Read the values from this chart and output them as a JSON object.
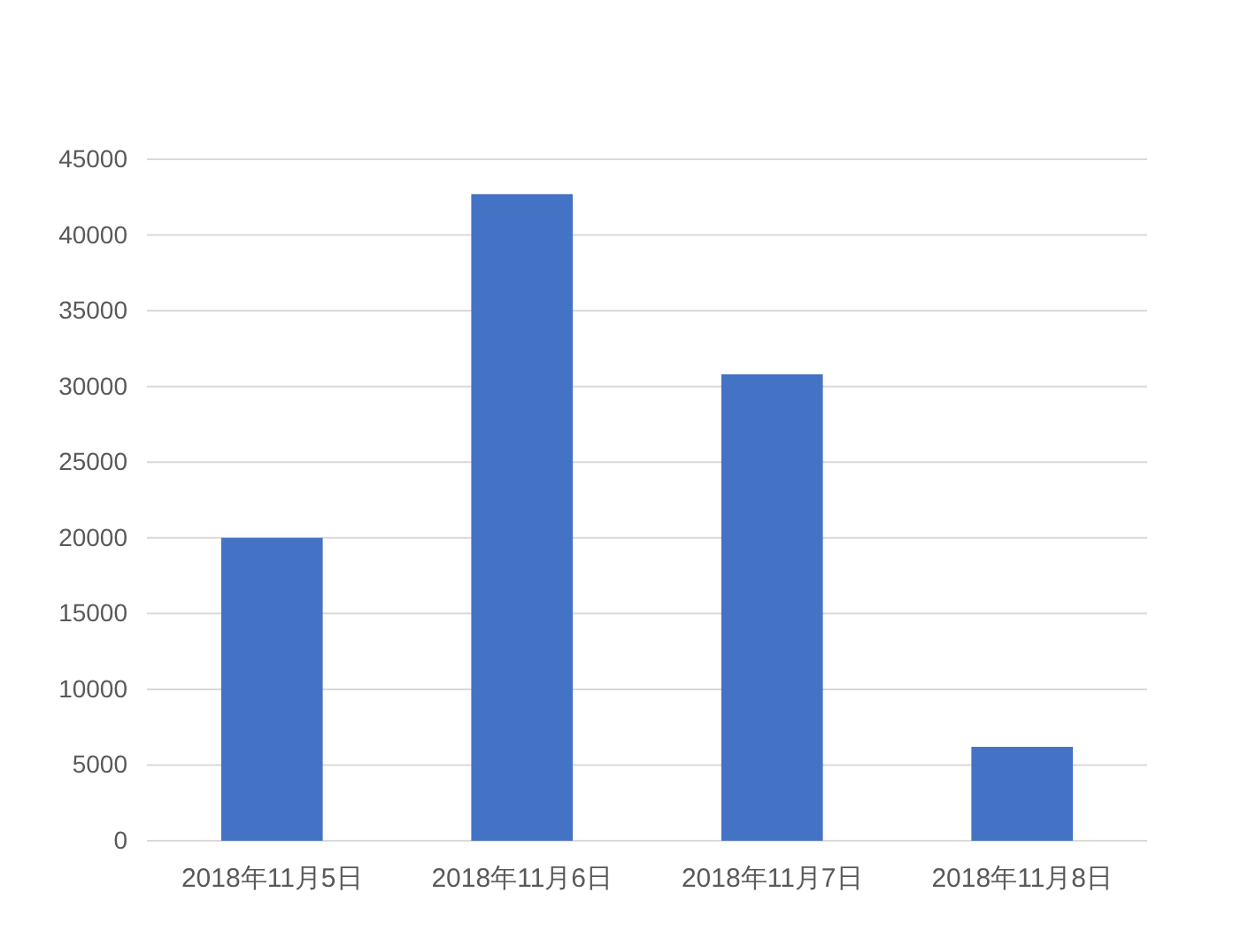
{
  "chart_data": {
    "type": "bar",
    "categories": [
      "2018年11月5日",
      "2018年11月6日",
      "2018年11月7日",
      "2018年11月8日"
    ],
    "values": [
      20000,
      42700,
      30800,
      6200
    ],
    "color": "#4472c4",
    "ylim": [
      0,
      45000
    ],
    "yticks": [
      0,
      5000,
      10000,
      15000,
      20000,
      25000,
      30000,
      35000,
      40000,
      45000
    ],
    "grid": "y"
  }
}
